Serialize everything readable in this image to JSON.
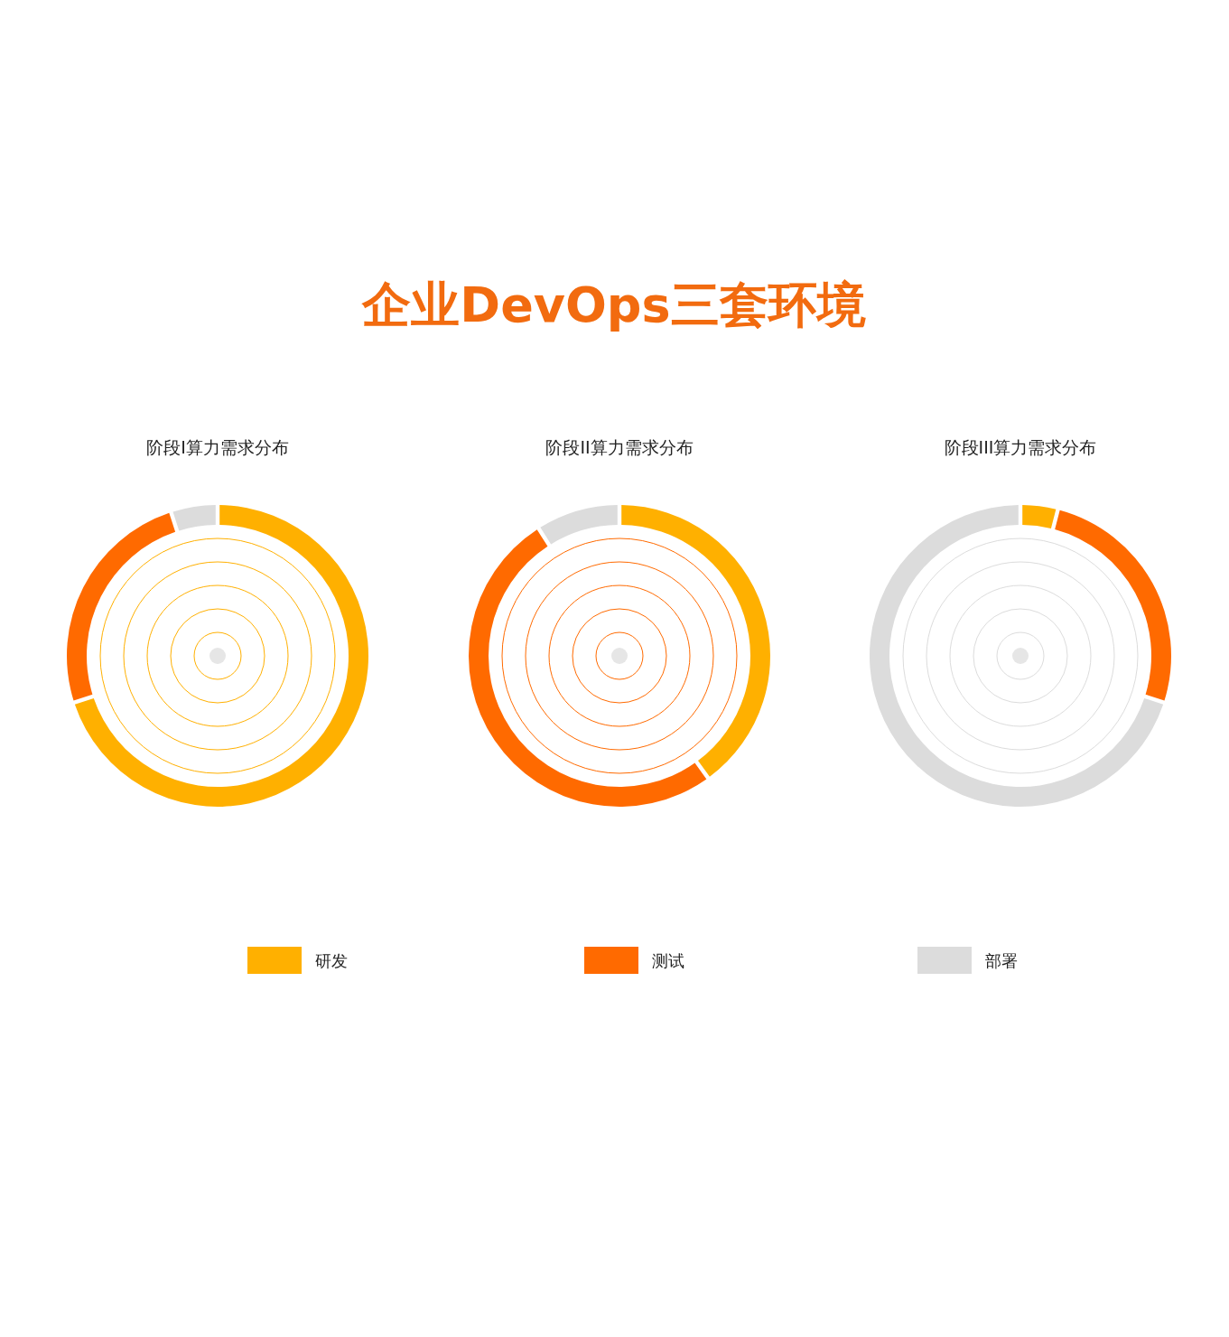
{
  "chart_data": [
    {
      "type": "donut",
      "title": "阶段I算力需求分布",
      "annotations": [
        "企业DevOps三套环境"
      ],
      "categories": [
        "研发",
        "测试",
        "部署"
      ],
      "values": [
        70,
        25,
        5
      ],
      "colors": [
        "#ffb000",
        "#ff6a00",
        "#dcdcdc"
      ],
      "legend": "bottom"
    },
    {
      "type": "donut",
      "title": "阶段II算力需求分布",
      "categories": [
        null,
        null,
        null
      ],
      "values": [
        40,
        51,
        9
      ],
      "colors": [
        "#ffb000",
        "#ff6a00",
        "#dcdcdc"
      ]
    },
    {
      "type": "donut",
      "title": "阶段III算力需求分布",
      "categories": [
        null,
        null,
        null
      ],
      "values": [
        4,
        26,
        70
      ],
      "colors": [
        "#ffb000",
        "#ff6a00",
        "#dcdcdc"
      ]
    }
  ]
}
